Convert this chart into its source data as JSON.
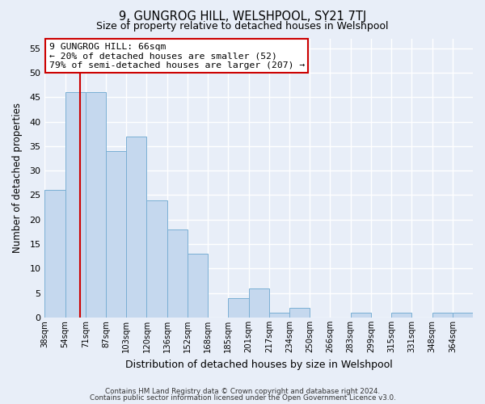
{
  "title": "9, GUNGROG HILL, WELSHPOOL, SY21 7TJ",
  "subtitle": "Size of property relative to detached houses in Welshpool",
  "xlabel": "Distribution of detached houses by size in Welshpool",
  "ylabel": "Number of detached properties",
  "footnote1": "Contains HM Land Registry data © Crown copyright and database right 2024.",
  "footnote2": "Contains public sector information licensed under the Open Government Licence v3.0.",
  "bin_labels": [
    "38sqm",
    "54sqm",
    "71sqm",
    "87sqm",
    "103sqm",
    "120sqm",
    "136sqm",
    "152sqm",
    "168sqm",
    "185sqm",
    "201sqm",
    "217sqm",
    "234sqm",
    "250sqm",
    "266sqm",
    "283sqm",
    "299sqm",
    "315sqm",
    "331sqm",
    "348sqm",
    "364sqm"
  ],
  "values": [
    26,
    46,
    46,
    34,
    37,
    24,
    18,
    13,
    0,
    4,
    6,
    1,
    2,
    0,
    0,
    1,
    0,
    1,
    0,
    1,
    1
  ],
  "bar_color": "#c5d8ee",
  "bar_edge_color": "#7aafd4",
  "marker_bin": 1.75,
  "marker_color": "#cc0000",
  "ylim": [
    0,
    57
  ],
  "yticks": [
    0,
    5,
    10,
    15,
    20,
    25,
    30,
    35,
    40,
    45,
    50,
    55
  ],
  "annotation_title": "9 GUNGROG HILL: 66sqm",
  "annotation_line1": "← 20% of detached houses are smaller (52)",
  "annotation_line2": "79% of semi-detached houses are larger (207) →",
  "annotation_box_color": "#ffffff",
  "annotation_border_color": "#cc0000",
  "bg_color": "#e8eef8",
  "grid_color": "#ffffff"
}
